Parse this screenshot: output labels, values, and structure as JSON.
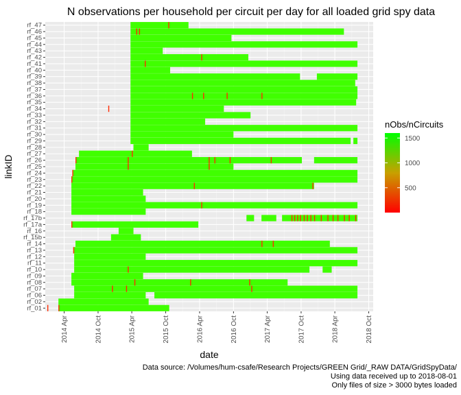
{
  "chart_data": {
    "type": "heatmap",
    "title": "N observations per household per circuit per day for all loaded grid spy data",
    "xlabel": "date",
    "ylabel": "linkID",
    "x_ticks": [
      "2014 Apr",
      "2014 Oct",
      "2015 Apr",
      "2015 Oct",
      "2016 Apr",
      "2016 Oct",
      "2017 Apr",
      "2017 Oct",
      "2018 Apr",
      "2018 Oct"
    ],
    "x_tick_dates": [
      "2014-04-01",
      "2014-10-01",
      "2015-04-01",
      "2015-10-01",
      "2016-04-01",
      "2016-10-01",
      "2017-04-01",
      "2017-10-01",
      "2018-04-01",
      "2018-10-01"
    ],
    "xlim": [
      "2013-12-20",
      "2018-10-25"
    ],
    "y_tick_labels": [
      "rf_01",
      "rf_02",
      "rf_06",
      "rf_07",
      "rf_08",
      "rf_09",
      "rf_10",
      "rf_11",
      "rf_12",
      "rf_13",
      "rf_14",
      "rf_15b",
      "rf_16",
      "rf_17a",
      "rf_17b",
      "rf_18",
      "rf_19",
      "rf_20",
      "rf_21",
      "rf_22",
      "rf_23",
      "rf_24",
      "rf_25",
      "rf_26",
      "rf_27",
      "rf_28",
      "rf_29",
      "rf_30",
      "rf_31",
      "rf_32",
      "rf_33",
      "rf_34",
      "rf_35",
      "rf_36",
      "rf_37",
      "rf_38",
      "rf_39",
      "rf_40",
      "rf_41",
      "rf_42",
      "rf_43",
      "rf_44",
      "rf_45",
      "rf_46",
      "rf_47"
    ],
    "legend": {
      "title": "nObs/nCircuits",
      "ticks": [
        500,
        1000,
        1500
      ],
      "range": [
        0,
        1600
      ],
      "color_low": "#ff0000",
      "color_high": "#00ff00",
      "position": "right"
    },
    "households": [
      {
        "id": "rf_01",
        "runs": [
          [
            "2014-03-01",
            "2015-10-20"
          ]
        ],
        "lows": [
          "2013-12-31",
          "2014-03-01"
        ]
      },
      {
        "id": "rf_02",
        "runs": [
          [
            "2014-03-01",
            "2015-07-01"
          ]
        ],
        "lows": []
      },
      {
        "id": "rf_06",
        "runs": [
          [
            "2014-05-25",
            "2015-06-15"
          ],
          [
            "2015-08-01",
            "2018-08-01"
          ]
        ],
        "lows": []
      },
      {
        "id": "rf_07",
        "runs": [
          [
            "2014-05-25",
            "2018-08-01"
          ]
        ],
        "lows": [
          "2014-12-15",
          "2015-03-01",
          "2017-01-05"
        ]
      },
      {
        "id": "rf_08",
        "runs": [
          [
            "2014-05-10",
            "2017-07-20"
          ]
        ],
        "lows": [
          "2015-04-15",
          "2016-02-10",
          "2016-12-25"
        ]
      },
      {
        "id": "rf_09",
        "runs": [
          [
            "2014-05-10",
            "2015-06-01"
          ]
        ],
        "lows": []
      },
      {
        "id": "rf_10",
        "runs": [
          [
            "2014-05-25",
            "2017-11-15"
          ],
          [
            "2018-01-25",
            "2018-03-15"
          ]
        ],
        "lows": [
          "2015-03-10"
        ]
      },
      {
        "id": "rf_11",
        "runs": [
          [
            "2014-05-25",
            "2018-08-01"
          ]
        ],
        "lows": []
      },
      {
        "id": "rf_12",
        "runs": [
          [
            "2014-05-25",
            "2015-06-15"
          ]
        ],
        "lows": []
      },
      {
        "id": "rf_13",
        "runs": [
          [
            "2014-05-20",
            "2018-08-01"
          ]
        ],
        "lows": [
          "2014-05-20"
        ]
      },
      {
        "id": "rf_14",
        "runs": [
          [
            "2014-06-01",
            "2018-03-05"
          ]
        ],
        "lows": [
          "2017-03-01",
          "2017-05-01"
        ]
      },
      {
        "id": "rf_15b",
        "runs": [
          [
            "2014-12-10",
            "2015-05-20"
          ]
        ],
        "lows": []
      },
      {
        "id": "rf_16",
        "runs": [
          [
            "2015-01-20",
            "2015-04-10"
          ]
        ],
        "lows": []
      },
      {
        "id": "rf_17a",
        "runs": [
          [
            "2014-05-10",
            "2016-03-25"
          ]
        ],
        "lows": [
          "2014-05-10"
        ]
      },
      {
        "id": "rf_17b",
        "runs": [
          [
            "2016-12-10",
            "2017-01-20"
          ],
          [
            "2017-03-01",
            "2017-05-20"
          ],
          [
            "2017-06-20",
            "2018-08-01"
          ]
        ],
        "lows": [
          "2017-08-10",
          "2017-08-25",
          "2017-09-10",
          "2017-09-25",
          "2017-10-15",
          "2017-11-01",
          "2017-11-20",
          "2017-12-10",
          "2018-01-15",
          "2018-02-20",
          "2018-03-20",
          "2018-04-15",
          "2018-05-20",
          "2018-06-15",
          "2018-07-20"
        ]
      },
      {
        "id": "rf_18",
        "runs": [
          [
            "2014-05-10",
            "2015-06-15"
          ]
        ],
        "lows": []
      },
      {
        "id": "rf_19",
        "runs": [
          [
            "2014-05-10",
            "2018-08-01"
          ]
        ],
        "lows": [
          "2016-04-10"
        ]
      },
      {
        "id": "rf_20",
        "runs": [
          [
            "2014-05-10",
            "2015-06-15"
          ]
        ],
        "lows": []
      },
      {
        "id": "rf_21",
        "runs": [
          [
            "2014-05-10",
            "2015-06-01"
          ]
        ],
        "lows": []
      },
      {
        "id": "rf_22",
        "runs": [
          [
            "2014-05-10",
            "2017-12-10"
          ]
        ],
        "lows": [
          "2016-03-01",
          "2017-12-01"
        ]
      },
      {
        "id": "rf_23",
        "runs": [
          [
            "2014-05-10",
            "2018-08-01"
          ]
        ],
        "lows": [
          "2014-05-10"
        ]
      },
      {
        "id": "rf_24",
        "runs": [
          [
            "2014-05-15",
            "2018-08-01"
          ]
        ],
        "lows": [
          "2014-05-15"
        ]
      },
      {
        "id": "rf_25",
        "runs": [
          [
            "2014-06-01",
            "2016-10-01"
          ]
        ],
        "lows": [
          "2015-03-10",
          "2016-05-20"
        ]
      },
      {
        "id": "rf_26",
        "runs": [
          [
            "2014-06-01",
            "2017-10-05"
          ],
          [
            "2017-12-10",
            "2018-08-01"
          ]
        ],
        "lows": [
          "2014-06-01",
          "2015-03-10",
          "2016-05-20",
          "2016-06-20",
          "2016-09-10",
          "2017-04-20"
        ]
      },
      {
        "id": "rf_27",
        "runs": [
          [
            "2014-06-20",
            "2016-02-20"
          ]
        ],
        "lows": [
          "2015-04-01"
        ]
      },
      {
        "id": "rf_28",
        "runs": [
          [
            "2015-04-10",
            "2015-07-01"
          ]
        ],
        "lows": []
      },
      {
        "id": "rf_29",
        "runs": [
          [
            "2015-03-25",
            "2018-06-25"
          ],
          [
            "2018-07-10",
            "2018-08-01"
          ]
        ],
        "lows": []
      },
      {
        "id": "rf_30",
        "runs": [
          [
            "2015-03-25",
            "2016-10-01"
          ]
        ],
        "lows": []
      },
      {
        "id": "rf_31",
        "runs": [
          [
            "2015-03-25",
            "2018-08-01"
          ]
        ],
        "lows": []
      },
      {
        "id": "rf_32",
        "runs": [
          [
            "2015-03-25",
            "2016-05-01"
          ]
        ],
        "lows": []
      },
      {
        "id": "rf_33",
        "runs": [
          [
            "2015-03-25",
            "2017-01-01"
          ]
        ],
        "lows": []
      },
      {
        "id": "rf_34",
        "runs": [
          [
            "2015-03-25",
            "2016-08-10"
          ]
        ],
        "lows": [
          "2014-11-25"
        ]
      },
      {
        "id": "rf_35",
        "runs": [
          [
            "2015-03-25",
            "2018-07-25"
          ]
        ],
        "lows": []
      },
      {
        "id": "rf_36",
        "runs": [
          [
            "2015-03-25",
            "2018-08-01"
          ]
        ],
        "lows": [
          "2016-02-20",
          "2016-04-20",
          "2016-08-25",
          "2017-03-01"
        ]
      },
      {
        "id": "rf_37",
        "runs": [
          [
            "2015-03-25",
            "2018-08-01"
          ]
        ],
        "lows": []
      },
      {
        "id": "rf_38",
        "runs": [
          [
            "2015-03-25",
            "2018-07-20"
          ]
        ],
        "lows": []
      },
      {
        "id": "rf_39",
        "runs": [
          [
            "2015-03-25",
            "2017-09-25"
          ],
          [
            "2017-12-25",
            "2018-08-01"
          ]
        ],
        "lows": []
      },
      {
        "id": "rf_40",
        "runs": [
          [
            "2015-03-25",
            "2015-10-25"
          ]
        ],
        "lows": []
      },
      {
        "id": "rf_41",
        "runs": [
          [
            "2015-03-25",
            "2018-08-01"
          ]
        ],
        "lows": [
          "2015-06-10"
        ]
      },
      {
        "id": "rf_42",
        "runs": [
          [
            "2015-03-25",
            "2016-12-20"
          ]
        ],
        "lows": [
          "2016-04-10"
        ]
      },
      {
        "id": "rf_43",
        "runs": [
          [
            "2015-03-25",
            "2015-09-15"
          ]
        ],
        "lows": []
      },
      {
        "id": "rf_44",
        "runs": [
          [
            "2015-03-25",
            "2018-08-01"
          ]
        ],
        "lows": []
      },
      {
        "id": "rf_45",
        "runs": [
          [
            "2015-03-25",
            "2016-09-20"
          ]
        ],
        "lows": []
      },
      {
        "id": "rf_46",
        "runs": [
          [
            "2015-03-25",
            "2018-05-20"
          ]
        ],
        "lows": [
          "2015-04-25",
          "2015-05-10"
        ]
      },
      {
        "id": "rf_47",
        "runs": [
          [
            "2015-03-25",
            "2016-02-01"
          ]
        ],
        "lows": [
          "2015-10-15"
        ]
      }
    ]
  },
  "captions": {
    "source": "Data source: /Volumes/hum-csafe/Research Projects/GREEN Grid/_RAW DATA/GridSpyData/",
    "received": "Using data received up to 2018-08-01",
    "filter": "Only files of size > 3000 bytes loaded"
  }
}
